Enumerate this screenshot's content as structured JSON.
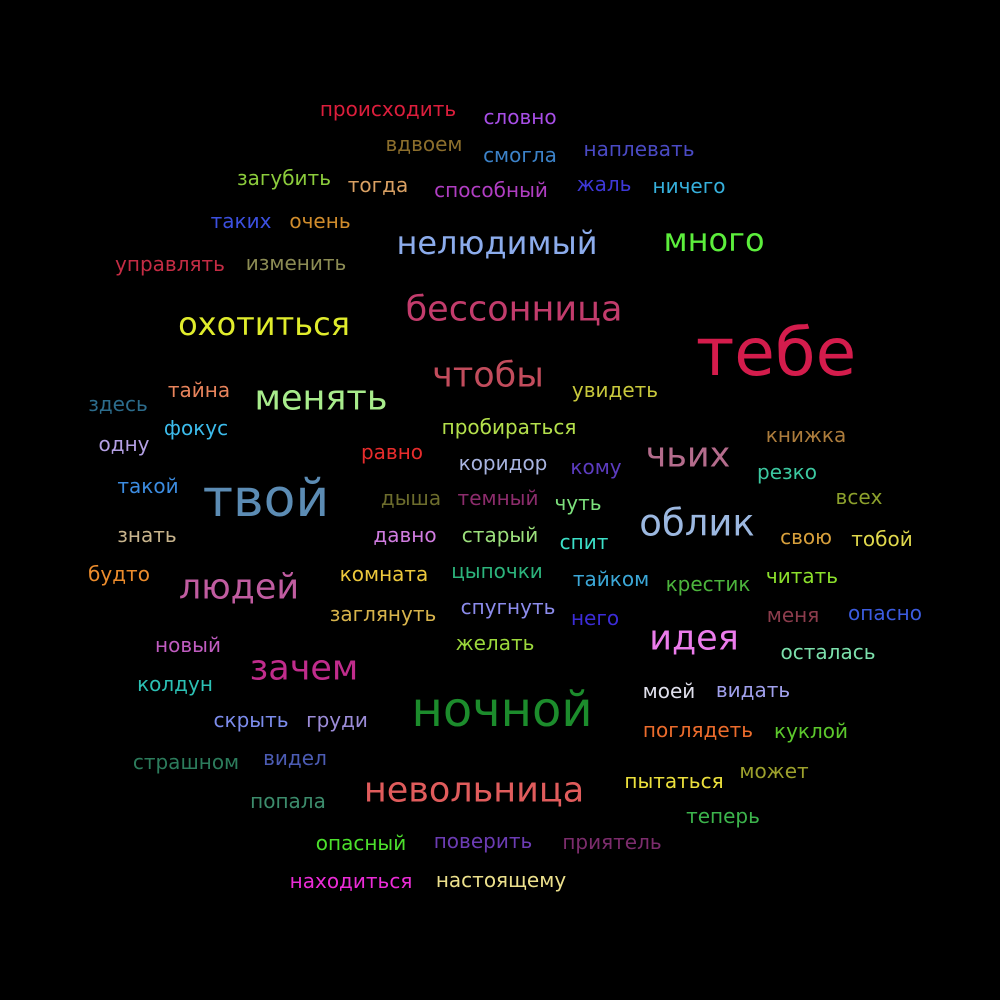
{
  "words": [
    {
      "text": "происходить",
      "color": "#dc1e3c"
    },
    {
      "text": "словно",
      "color": "#a74ee6"
    },
    {
      "text": "вдвоем",
      "color": "#8c6e2c"
    },
    {
      "text": "смогла",
      "color": "#3c82c8"
    },
    {
      "text": "наплевать",
      "color": "#4a4ac4"
    },
    {
      "text": "загубить",
      "color": "#8ccc3c"
    },
    {
      "text": "тогда",
      "color": "#d9a063"
    },
    {
      "text": "способный",
      "color": "#b03ec2"
    },
    {
      "text": "жаль",
      "color": "#3e38d8"
    },
    {
      "text": "ничего",
      "color": "#36b0dc"
    },
    {
      "text": "таких",
      "color": "#3c50e0"
    },
    {
      "text": "очень",
      "color": "#d08c2c"
    },
    {
      "text": "нелюдимый",
      "color": "#8cacec"
    },
    {
      "text": "много",
      "color": "#5cee3c"
    },
    {
      "text": "управлять",
      "color": "#c42c44"
    },
    {
      "text": "изменить",
      "color": "#8c8c54"
    },
    {
      "text": "бессонница",
      "color": "#c23c6c"
    },
    {
      "text": "охотиться",
      "color": "#e0ec2c"
    },
    {
      "text": "тебе",
      "color": "#d41c4c"
    },
    {
      "text": "чтобы",
      "color": "#c24c5c"
    },
    {
      "text": "тайна",
      "color": "#e8845c"
    },
    {
      "text": "менять",
      "color": "#a8ec8c"
    },
    {
      "text": "увидеть",
      "color": "#c8c83c"
    },
    {
      "text": "здесь",
      "color": "#2c6c8c"
    },
    {
      "text": "фокус",
      "color": "#3cbcec"
    },
    {
      "text": "пробираться",
      "color": "#b4e04c"
    },
    {
      "text": "книжка",
      "color": "#ac7c3c"
    },
    {
      "text": "одну",
      "color": "#b4a0e4"
    },
    {
      "text": "равно",
      "color": "#e82c2c"
    },
    {
      "text": "коридор",
      "color": "#a8b4e0"
    },
    {
      "text": "кому",
      "color": "#5c3cc0"
    },
    {
      "text": "чьих",
      "color": "#b46c8c"
    },
    {
      "text": "резко",
      "color": "#3cc8a0"
    },
    {
      "text": "такой",
      "color": "#3c8ce0"
    },
    {
      "text": "твой",
      "color": "#5c8cb4"
    },
    {
      "text": "дыша",
      "color": "#6c6c2c"
    },
    {
      "text": "темный",
      "color": "#8c2c6c"
    },
    {
      "text": "чуть",
      "color": "#7ce07c"
    },
    {
      "text": "всех",
      "color": "#8ca02c"
    },
    {
      "text": "облик",
      "color": "#9cb8e0"
    },
    {
      "text": "знать",
      "color": "#c8b48c"
    },
    {
      "text": "давно",
      "color": "#d07ce0"
    },
    {
      "text": "старый",
      "color": "#9ce07c"
    },
    {
      "text": "спит",
      "color": "#3ce0c8"
    },
    {
      "text": "свою",
      "color": "#d8a03c"
    },
    {
      "text": "тобой",
      "color": "#e0d84c"
    },
    {
      "text": "будто",
      "color": "#ec8c2c"
    },
    {
      "text": "людей",
      "color": "#c05ca0"
    },
    {
      "text": "комната",
      "color": "#ecc83c"
    },
    {
      "text": "цыпочки",
      "color": "#2cb47c"
    },
    {
      "text": "тайком",
      "color": "#3ca8d8"
    },
    {
      "text": "крестик",
      "color": "#4cb43c"
    },
    {
      "text": "читать",
      "color": "#8ce02c"
    },
    {
      "text": "заглянуть",
      "color": "#d8b44c"
    },
    {
      "text": "спугнуть",
      "color": "#8c8cec"
    },
    {
      "text": "него",
      "color": "#3c2cd8"
    },
    {
      "text": "меня",
      "color": "#8c3c4c"
    },
    {
      "text": "опасно",
      "color": "#3c5ce0"
    },
    {
      "text": "новый",
      "color": "#c05cc0"
    },
    {
      "text": "идея",
      "color": "#ec7cec"
    },
    {
      "text": "желать",
      "color": "#9cd83c"
    },
    {
      "text": "осталась",
      "color": "#7ce0ac"
    },
    {
      "text": "зачем",
      "color": "#c02c8c"
    },
    {
      "text": "колдун",
      "color": "#2cc0b4"
    },
    {
      "text": "ночной",
      "color": "#1c8c2c"
    },
    {
      "text": "моей",
      "color": "#e0e0ec"
    },
    {
      "text": "видать",
      "color": "#a0a0ec"
    },
    {
      "text": "скрыть",
      "color": "#7c8cec"
    },
    {
      "text": "груди",
      "color": "#9c8cd8"
    },
    {
      "text": "поглядеть",
      "color": "#ec6c2c"
    },
    {
      "text": "куклой",
      "color": "#5cc82c"
    },
    {
      "text": "страшном",
      "color": "#2c7c5c"
    },
    {
      "text": "видел",
      "color": "#4c5cb4"
    },
    {
      "text": "невольница",
      "color": "#e05c5c"
    },
    {
      "text": "пытаться",
      "color": "#ece03c"
    },
    {
      "text": "может",
      "color": "#9ca02c"
    },
    {
      "text": "попала",
      "color": "#3c8c6c"
    },
    {
      "text": "теперь",
      "color": "#3cb44c"
    },
    {
      "text": "опасный",
      "color": "#4ce02c"
    },
    {
      "text": "поверить",
      "color": "#6c3cb4"
    },
    {
      "text": "приятель",
      "color": "#7c2c6c"
    },
    {
      "text": "находиться",
      "color": "#ec2cd8"
    },
    {
      "text": "настоящему",
      "color": "#ece08c"
    }
  ]
}
